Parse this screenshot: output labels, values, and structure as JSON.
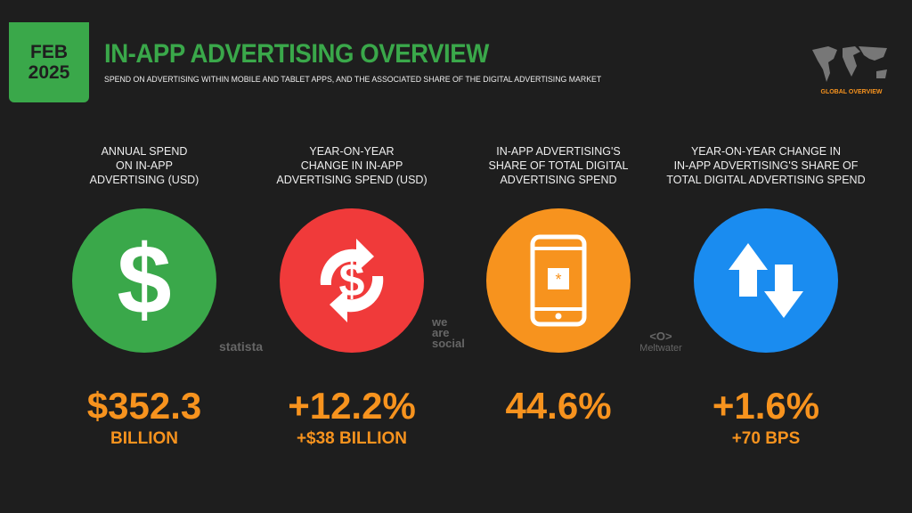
{
  "header": {
    "month": "FEB",
    "year": "2025",
    "title": "IN-APP ADVERTISING OVERVIEW",
    "subtitle": "SPEND ON ADVERTISING WITHIN MOBILE AND TABLET APPS, AND THE ASSOCIATED SHARE OF THE DIGITAL ADVERTISING MARKET",
    "region_label": "GLOBAL OVERVIEW"
  },
  "colors": {
    "green": "#3aa84a",
    "red": "#f03a3a",
    "orange": "#f7931e",
    "blue": "#1a8cf0"
  },
  "stats": [
    {
      "label": "ANNUAL SPEND\nON IN-APP\nADVERTISING (USD)",
      "icon": "dollar-icon",
      "value": "$352.3",
      "sub": "BILLION"
    },
    {
      "label": "YEAR-ON-YEAR\nCHANGE IN IN-APP\nADVERTISING SPEND (USD)",
      "icon": "dollar-change-arrows-icon",
      "value": "+12.2%",
      "sub": "+$38 BILLION"
    },
    {
      "label": "IN-APP ADVERTISING'S\nSHARE OF TOTAL DIGITAL\nADVERTISING SPEND",
      "icon": "smartphone-icon",
      "value": "44.6%",
      "sub": ""
    },
    {
      "label": "YEAR-ON-YEAR CHANGE IN\nIN-APP ADVERTISING'S SHARE OF\nTOTAL DIGITAL ADVERTISING SPEND",
      "icon": "up-down-arrows-icon",
      "value": "+1.6%",
      "sub": "+70 BPS"
    }
  ],
  "sources": {
    "statista": "statista",
    "wearesocial": "we\nare\nsocial",
    "meltwater": "Meltwater"
  }
}
